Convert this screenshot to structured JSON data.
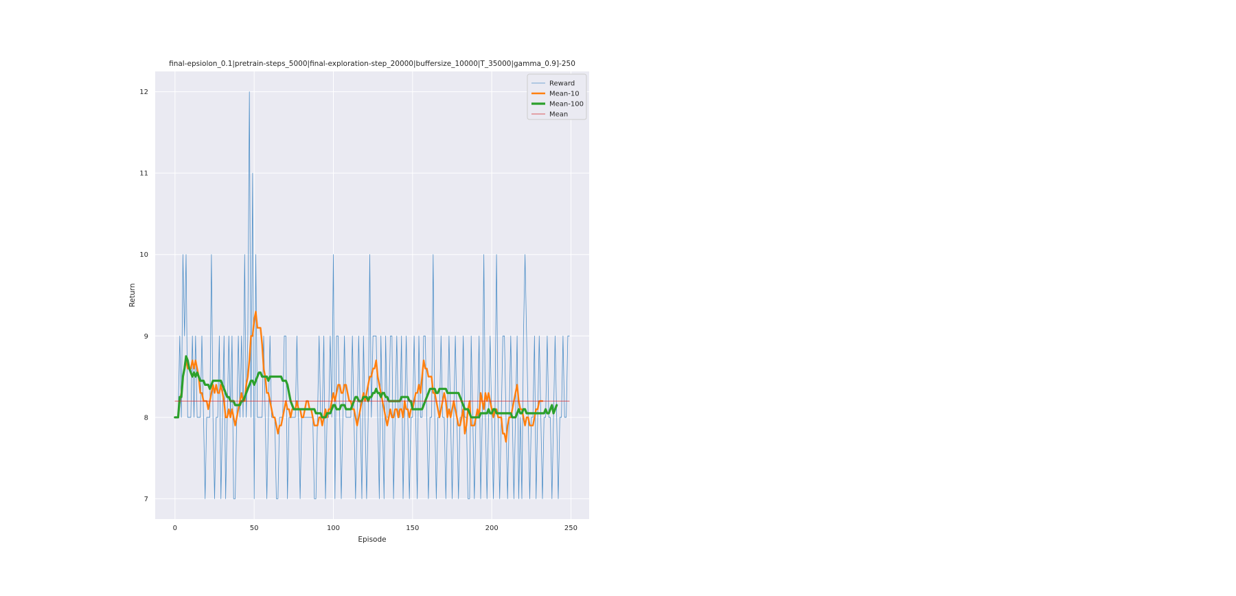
{
  "chart_data": {
    "type": "line",
    "title": "final-epsiolon_0.1|pretrain-steps_5000|final-exploration-step_20000|buffersize_10000|T_35000|gamma_0.9]-250",
    "xlabel": "Episode",
    "ylabel": "Return",
    "xlim": [
      -12.5,
      261.5
    ],
    "ylim": [
      6.75,
      12.25
    ],
    "xticks": [
      0,
      50,
      100,
      150,
      200,
      250
    ],
    "yticks": [
      7,
      8,
      9,
      10,
      11,
      12
    ],
    "grid": true,
    "legend_position": "top-right",
    "series": [
      {
        "name": "Reward",
        "color": "#4c8ec7",
        "width": "thin",
        "values": [
          8,
          8,
          8,
          9,
          8,
          10,
          9,
          10,
          8,
          8,
          8,
          9,
          8,
          9,
          8,
          8,
          8,
          9,
          8,
          7,
          8,
          8,
          8,
          10,
          8,
          7,
          8,
          8,
          9,
          7,
          8,
          9,
          7,
          8,
          9,
          8,
          9,
          7,
          7,
          8,
          9,
          8,
          9,
          8,
          10,
          8,
          9,
          12,
          8,
          11,
          7,
          10,
          8,
          8,
          8,
          8,
          9,
          8,
          7,
          8,
          9,
          8,
          8,
          8,
          7,
          7,
          8,
          8,
          8,
          9,
          9,
          7,
          8,
          8,
          8,
          8,
          8,
          9,
          8,
          7,
          8,
          8,
          8,
          8,
          8,
          8,
          8,
          8,
          7,
          7,
          8,
          9,
          8,
          8,
          9,
          7,
          8,
          8,
          9,
          8,
          10,
          7,
          9,
          9,
          8,
          7,
          8,
          9,
          8,
          8,
          8,
          8,
          9,
          8,
          7,
          8,
          9,
          8,
          7,
          9,
          8,
          7,
          8,
          10,
          8,
          9,
          9,
          9,
          8,
          7,
          9,
          8,
          7,
          9,
          8,
          8,
          9,
          9,
          7,
          8,
          9,
          8,
          8,
          9,
          7,
          8,
          9,
          8,
          7,
          8,
          8,
          9,
          8,
          7,
          9,
          8,
          8,
          9,
          9,
          8,
          7,
          8,
          8,
          10,
          8,
          7,
          8,
          8,
          9,
          8,
          8,
          7,
          8,
          9,
          8,
          7,
          8,
          9,
          8,
          7,
          8,
          8,
          9,
          8,
          8,
          7,
          7,
          9,
          8,
          7,
          8,
          8,
          9,
          7,
          8,
          10,
          8,
          7,
          8,
          9,
          8,
          7,
          8,
          10,
          8,
          7,
          8,
          9,
          9,
          8,
          7,
          8,
          9,
          8,
          7,
          8,
          9,
          7,
          8,
          7,
          9,
          10,
          9,
          8,
          7,
          8,
          8,
          9,
          7,
          8,
          9,
          8,
          7,
          8,
          8,
          9,
          8,
          8,
          7,
          8,
          9,
          8,
          7,
          8,
          8,
          9,
          8,
          8,
          9,
          9
        ],
        "note_values_read_from_plot": true
      },
      {
        "name": "Mean-10",
        "color": "#ff7f0e",
        "width": "medium",
        "values": [
          8,
          8,
          8,
          8.2,
          8.3,
          8.5,
          8.6,
          8.7,
          8.6,
          8.6,
          8.6,
          8.7,
          8.6,
          8.7,
          8.6,
          8.5,
          8.3,
          8.3,
          8.2,
          8.2,
          8.2,
          8.1,
          8.2,
          8.3,
          8.4,
          8.3,
          8.4,
          8.3,
          8.3,
          8.4,
          8.3,
          8.2,
          8.0,
          8.0,
          8.1,
          8.0,
          8.1,
          8.0,
          7.9,
          8.0,
          8.1,
          8.2,
          8.3,
          8.2,
          8.2,
          8.4,
          8.5,
          8.7,
          9.0,
          9.0,
          9.2,
          9.3,
          9.1,
          9.1,
          9.1,
          8.9,
          8.6,
          8.5,
          8.3,
          8.3,
          8.2,
          8.1,
          8.0,
          8.0,
          7.9,
          7.8,
          7.9,
          7.9,
          8.0,
          8.1,
          8.2,
          8.1,
          8.1,
          8.0,
          8.1,
          8.1,
          8.1,
          8.2,
          8.1,
          8.1,
          8.0,
          8.0,
          8.1,
          8.2,
          8.2,
          8.1,
          8.1,
          8.0,
          7.9,
          7.9,
          7.9,
          8.0,
          8.0,
          7.9,
          8.0,
          8.1,
          8.0,
          8.1,
          8.1,
          8.2,
          8.3,
          8.2,
          8.3,
          8.4,
          8.4,
          8.3,
          8.3,
          8.4,
          8.4,
          8.3,
          8.2,
          8.2,
          8.1,
          8.1,
          8.0,
          7.9,
          8.0,
          8.1,
          8.2,
          8.3,
          8.2,
          8.3,
          8.4,
          8.5,
          8.5,
          8.6,
          8.6,
          8.7,
          8.5,
          8.4,
          8.3,
          8.2,
          8.1,
          8.0,
          7.9,
          8.0,
          8.1,
          8.0,
          8.0,
          8.1,
          8.1,
          8.0,
          8.1,
          8.1,
          8.0,
          8.2,
          8.1,
          8.1,
          8.0,
          8.1,
          8.1,
          8.2,
          8.3,
          8.3,
          8.4,
          8.3,
          8.5,
          8.7,
          8.6,
          8.6,
          8.5,
          8.5,
          8.5,
          8.3,
          8.3,
          8.2,
          8.1,
          8.0,
          8.1,
          8.2,
          8.3,
          8.2,
          8.0,
          8.1,
          8.0,
          8.1,
          8.2,
          8.1,
          8.0,
          7.9,
          7.9,
          8.0,
          8.1,
          7.8,
          7.9,
          8.1,
          8.2,
          7.9,
          7.9,
          7.9,
          8.0,
          8.1,
          8.0,
          8.3,
          8.2,
          8.1,
          8.3,
          8.2,
          8.3,
          8.2,
          8.1,
          8.0,
          8.1,
          8.1,
          8.0,
          8.0,
          8.0,
          7.8,
          7.8,
          7.7,
          7.9,
          8.0,
          8.0,
          8.1,
          8.2,
          8.3,
          8.4,
          8.2,
          8.1,
          8.1,
          8.0,
          7.9,
          8.0,
          8.0,
          7.9,
          7.9,
          7.9,
          8.0,
          8.1,
          8.1,
          8.2,
          8.2,
          8.2
        ],
        "note_values_read_from_plot": true
      },
      {
        "name": "Mean-100",
        "color": "#2ca02c",
        "width": "thick",
        "values": [
          8,
          8,
          8,
          8.25,
          8.25,
          8.5,
          8.6,
          8.75,
          8.7,
          8.6,
          8.55,
          8.5,
          8.55,
          8.5,
          8.55,
          8.5,
          8.45,
          8.45,
          8.45,
          8.4,
          8.4,
          8.4,
          8.35,
          8.4,
          8.45,
          8.45,
          8.45,
          8.45,
          8.45,
          8.45,
          8.4,
          8.35,
          8.3,
          8.25,
          8.25,
          8.2,
          8.2,
          8.2,
          8.15,
          8.15,
          8.15,
          8.15,
          8.2,
          8.2,
          8.25,
          8.3,
          8.35,
          8.4,
          8.45,
          8.45,
          8.4,
          8.45,
          8.5,
          8.55,
          8.55,
          8.5,
          8.5,
          8.5,
          8.5,
          8.45,
          8.5,
          8.5,
          8.5,
          8.5,
          8.5,
          8.5,
          8.5,
          8.5,
          8.45,
          8.45,
          8.45,
          8.4,
          8.3,
          8.2,
          8.15,
          8.1,
          8.1,
          8.1,
          8.1,
          8.1,
          8.1,
          8.1,
          8.1,
          8.1,
          8.1,
          8.1,
          8.1,
          8.1,
          8.1,
          8.05,
          8.05,
          8.05,
          8.05,
          8.0,
          8.0,
          8.0,
          8.05,
          8.05,
          8.05,
          8.1,
          8.15,
          8.15,
          8.1,
          8.1,
          8.1,
          8.15,
          8.15,
          8.15,
          8.1,
          8.1,
          8.1,
          8.1,
          8.15,
          8.2,
          8.25,
          8.25,
          8.2,
          8.2,
          8.2,
          8.25,
          8.25,
          8.25,
          8.2,
          8.25,
          8.25,
          8.3,
          8.3,
          8.35,
          8.3,
          8.3,
          8.25,
          8.3,
          8.3,
          8.25,
          8.25,
          8.2,
          8.2,
          8.2,
          8.2,
          8.2,
          8.2,
          8.2,
          8.2,
          8.25,
          8.25,
          8.25,
          8.25,
          8.25,
          8.2,
          8.2,
          8.1,
          8.1,
          8.1,
          8.1,
          8.1,
          8.1,
          8.1,
          8.15,
          8.2,
          8.25,
          8.3,
          8.35,
          8.35,
          8.35,
          8.35,
          8.3,
          8.3,
          8.35,
          8.35,
          8.35,
          8.35,
          8.35,
          8.3,
          8.3,
          8.3,
          8.3,
          8.3,
          8.3,
          8.3,
          8.3,
          8.25,
          8.2,
          8.15,
          8.1,
          8.1,
          8.1,
          8.05,
          8.0,
          8.0,
          8.0,
          8.0,
          8.0,
          8.0,
          8.05,
          8.05,
          8.05,
          8.05,
          8.05,
          8.1,
          8.05,
          8.05,
          8.1,
          8.1,
          8.05,
          8.05,
          8.05,
          8.05,
          8.05,
          8.05,
          8.05,
          8.05,
          8.05,
          8.05,
          8.0,
          8.0,
          8.0,
          8.05,
          8.1,
          8.05,
          8.05,
          8.1,
          8.1,
          8.05,
          8.05,
          8.05,
          8.05,
          8.05,
          8.05,
          8.05,
          8.05,
          8.05,
          8.05,
          8.05,
          8.05,
          8.1,
          8.05,
          8.05,
          8.1,
          8.15,
          8.05,
          8.1,
          8.15
        ],
        "note_values_read_from_plot": true
      },
      {
        "name": "Mean",
        "color": "#d62728",
        "width": "thin",
        "constant": 8.2,
        "x_range": [
          0,
          249
        ]
      }
    ]
  }
}
